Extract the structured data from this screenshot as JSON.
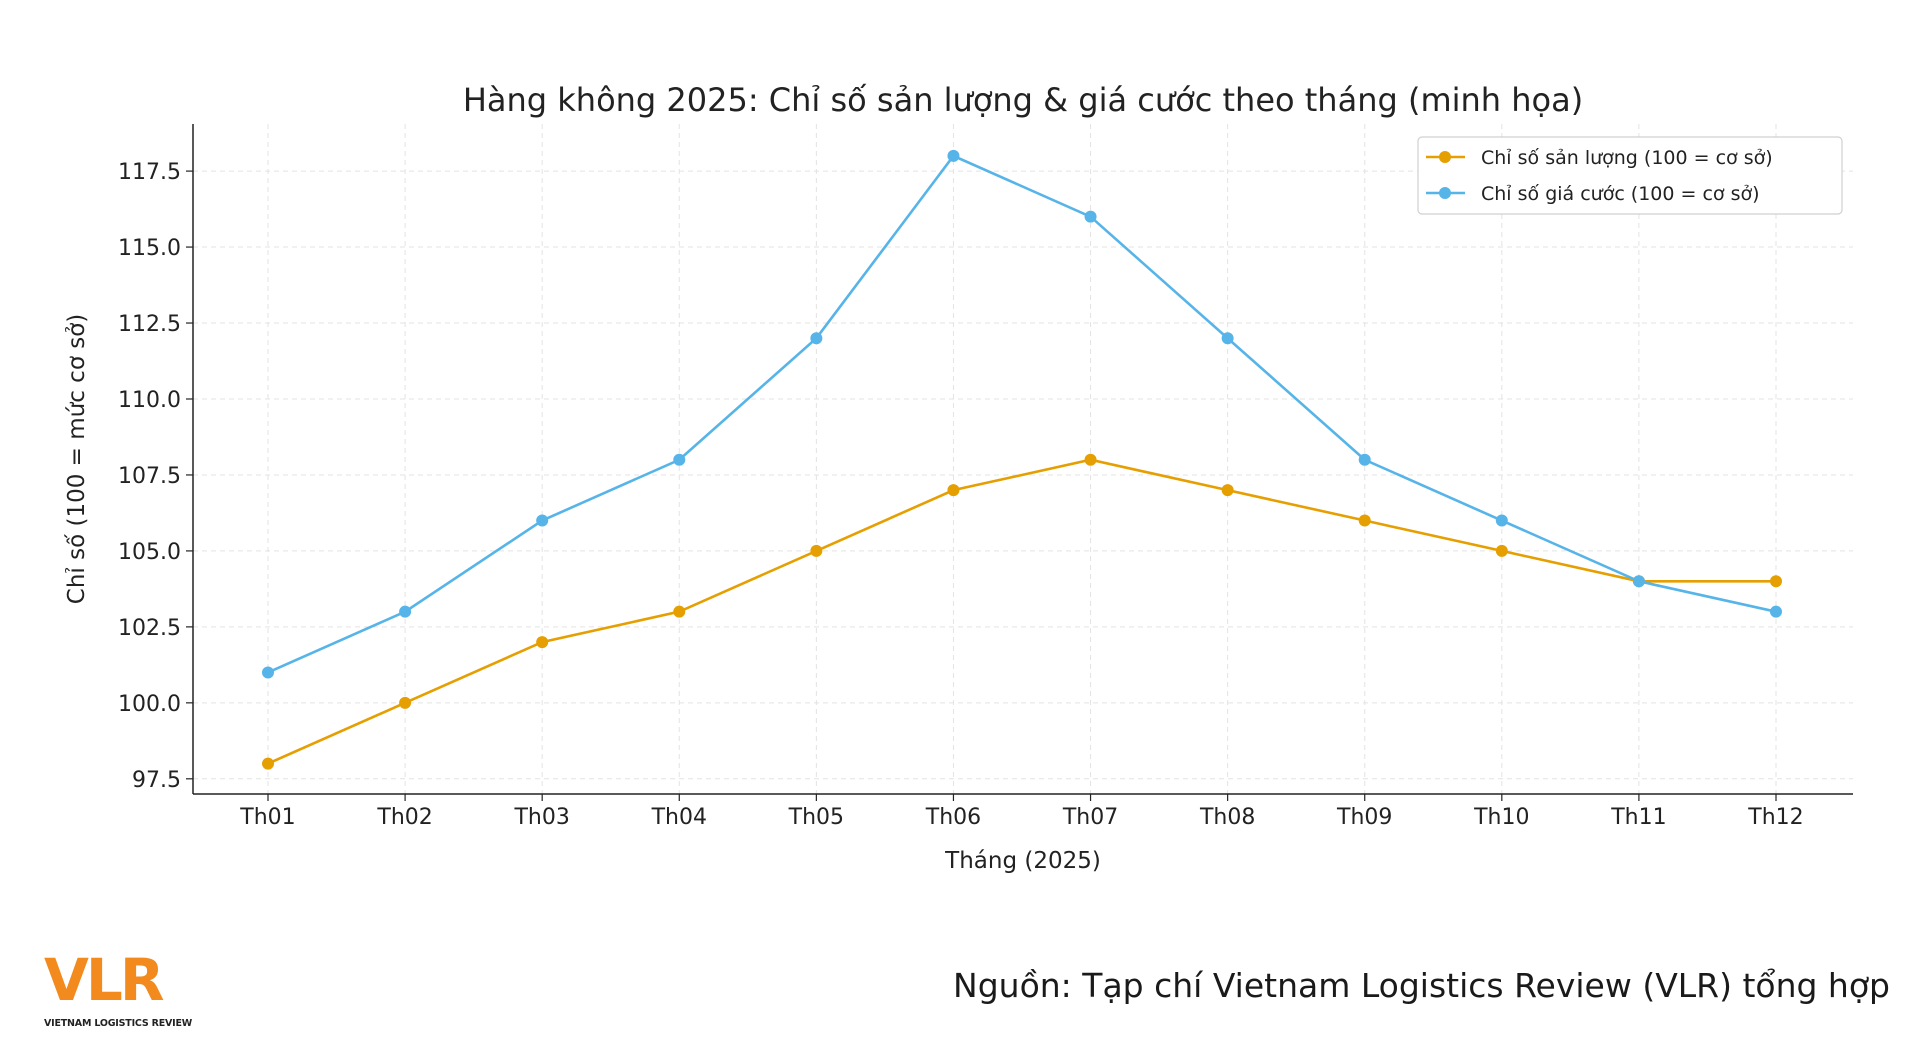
{
  "chart_data": {
    "type": "line",
    "title": "Hàng không 2025: Chỉ số sản lượng & giá cước theo tháng (minh họa)",
    "xlabel": "Tháng (2025)",
    "ylabel": "Chỉ số (100 = mức cơ sở)",
    "categories": [
      "Th01",
      "Th02",
      "Th03",
      "Th04",
      "Th05",
      "Th06",
      "Th07",
      "Th08",
      "Th09",
      "Th10",
      "Th11",
      "Th12"
    ],
    "yticks": [
      "97.5",
      "100.0",
      "102.5",
      "105.0",
      "107.5",
      "110.0",
      "112.5",
      "115.0",
      "117.5"
    ],
    "ylim": [
      97.0,
      119.05
    ],
    "grid": true,
    "legend": "top-right",
    "series": [
      {
        "name": "Chỉ số sản lượng (100 = cơ sở)",
        "color": "#E69F00",
        "values": [
          98,
          100,
          102,
          103,
          105,
          107,
          108,
          107,
          106,
          105,
          104,
          104
        ]
      },
      {
        "name": "Chỉ số giá cước (100 = cơ sở)",
        "color": "#56B4E9",
        "values": [
          101,
          103,
          106,
          108,
          112,
          118,
          116,
          112,
          108,
          106,
          104,
          103
        ]
      }
    ]
  },
  "footer": {
    "source": "Nguồn: Tạp chí Vietnam Logistics Review (VLR) tổng hợp",
    "logo_text": "VLR",
    "logo_subtext": "VIETNAM LOGISTICS REVIEW",
    "logo_color": "#F28A1E"
  }
}
